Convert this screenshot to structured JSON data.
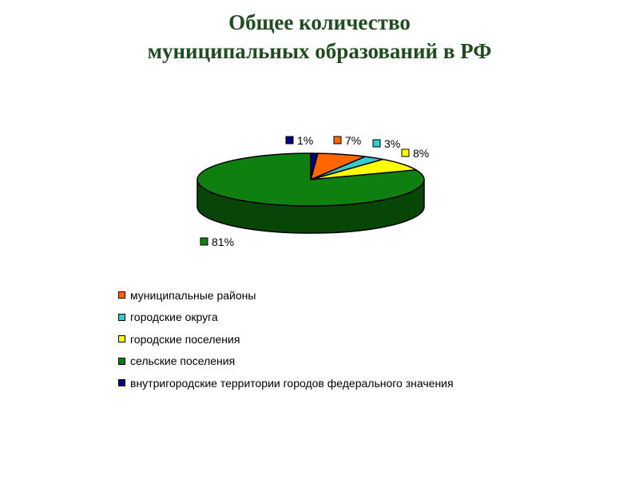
{
  "title_line1": "Общее количество",
  "title_line2": "муниципальных образований в РФ",
  "chart_data": {
    "type": "pie",
    "categories": [
      "муниципальные районы",
      "городские округа",
      "городские поселения",
      "сельские поселения",
      "внутригородские территории городов федерального значения"
    ],
    "values": [
      7,
      3,
      8,
      81,
      1
    ],
    "value_labels": [
      "7%",
      "3%",
      "8%",
      "81%",
      "1%"
    ],
    "colors": [
      "#ff6600",
      "#33cccc",
      "#ffff00",
      "#0f7f0f",
      "#000080"
    ],
    "style": "3d",
    "legend_position": "bottom"
  }
}
